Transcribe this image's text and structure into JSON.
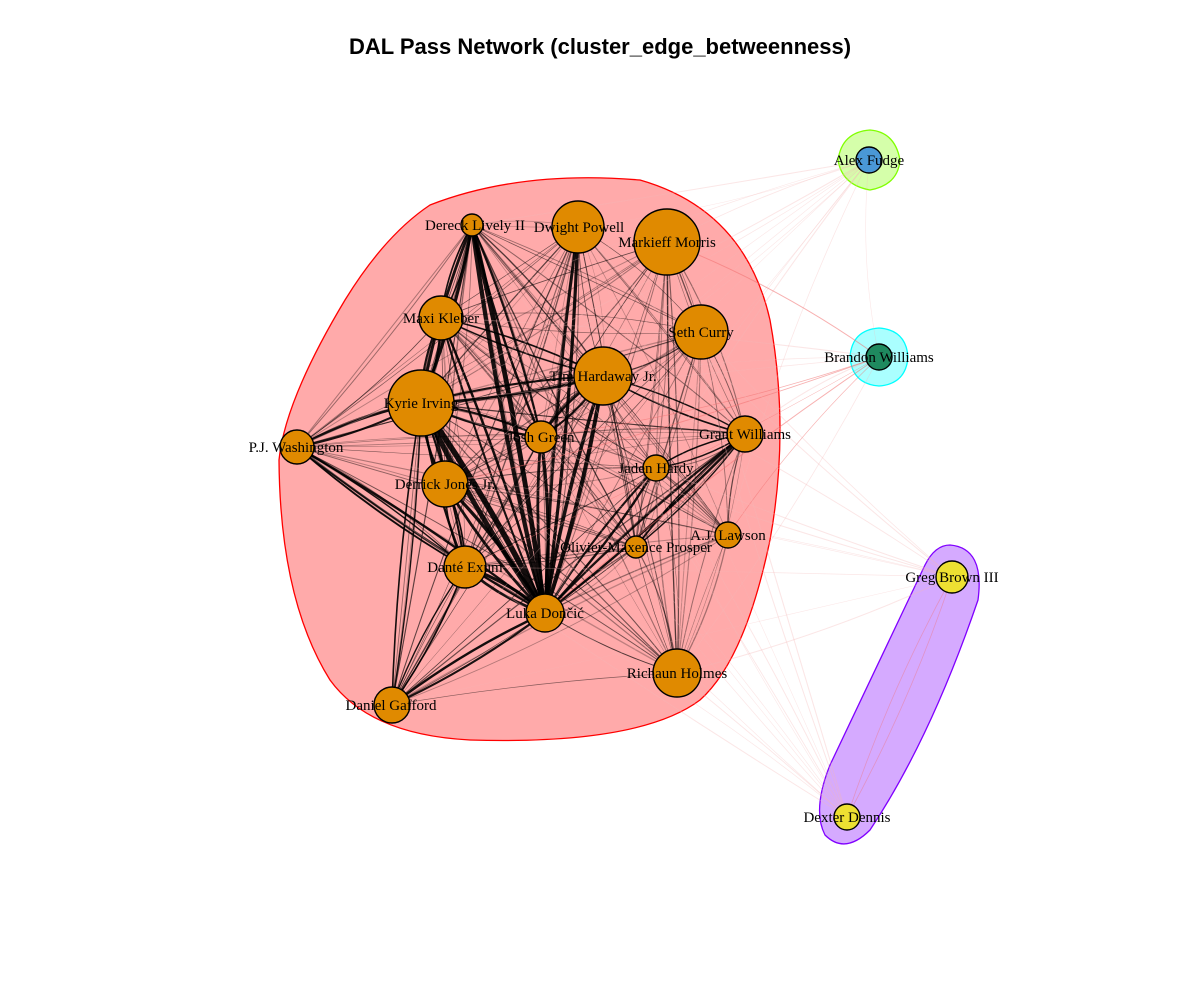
{
  "title": "DAL Pass Network (cluster_edge_betweenness)",
  "colors": {
    "cluster1_fill": "#ff000055",
    "cluster1_stroke": "#ff0000",
    "cluster2_fill": "#80ff0055",
    "cluster2_stroke": "#80ff00",
    "cluster3_fill": "#00ffff55",
    "cluster3_stroke": "#00ffff",
    "cluster4_fill": "#8000ff55",
    "cluster4_stroke": "#8000ff",
    "node_orange": "#e08a00",
    "node_blue": "#4a98d6",
    "node_green": "#1f8a5f",
    "node_yellow": "#ede032",
    "edge_internal": "#000000",
    "edge_external": "#f07070"
  },
  "clusters": [
    {
      "id": 1,
      "color": "cluster1",
      "members": [
        "Dereck Lively II",
        "Dwight Powell",
        "Markieff Morris",
        "Maxi Kleber",
        "Seth Curry",
        "Tim Hardaway Jr.",
        "Kyrie Irving",
        "P.J. Washington",
        "Josh Green",
        "Grant Williams",
        "Jaden Hardy",
        "Derrick Jones Jr.",
        "A.J. Lawson",
        "Olivier-Maxence Prosper",
        "Dante Exum",
        "Luka Doncic",
        "Richaun Holmes",
        "Daniel Gafford"
      ]
    },
    {
      "id": 2,
      "color": "cluster2",
      "members": [
        "Alex Fudge"
      ]
    },
    {
      "id": 3,
      "color": "cluster3",
      "members": [
        "Brandon Williams"
      ]
    },
    {
      "id": 4,
      "color": "cluster4",
      "members": [
        "Greg Brown III",
        "Dexter Dennis"
      ]
    }
  ],
  "nodes": [
    {
      "id": "lively",
      "label": "Dereck Lively II",
      "cluster": 1,
      "color": "orange",
      "size": 11
    },
    {
      "id": "powell",
      "label": "Dwight Powell",
      "cluster": 1,
      "color": "orange",
      "size": 26
    },
    {
      "id": "morris",
      "label": "Markieff Morris",
      "cluster": 1,
      "color": "orange",
      "size": 33
    },
    {
      "id": "kleber",
      "label": "Maxi Kleber",
      "cluster": 1,
      "color": "orange",
      "size": 22
    },
    {
      "id": "curry",
      "label": "Seth Curry",
      "cluster": 1,
      "color": "orange",
      "size": 27
    },
    {
      "id": "hardaway",
      "label": "Tim Hardaway Jr.",
      "cluster": 1,
      "color": "orange",
      "size": 29
    },
    {
      "id": "irving",
      "label": "Kyrie Irving",
      "cluster": 1,
      "color": "orange",
      "size": 33
    },
    {
      "id": "washington",
      "label": "P.J. Washington",
      "cluster": 1,
      "color": "orange",
      "size": 17
    },
    {
      "id": "green",
      "label": "Josh Green",
      "cluster": 1,
      "color": "orange",
      "size": 16
    },
    {
      "id": "gwilliams",
      "label": "Grant Williams",
      "cluster": 1,
      "color": "orange",
      "size": 18
    },
    {
      "id": "hardy",
      "label": "Jaden Hardy",
      "cluster": 1,
      "color": "orange",
      "size": 13
    },
    {
      "id": "jones",
      "label": "Derrick Jones Jr.",
      "cluster": 1,
      "color": "orange",
      "size": 23
    },
    {
      "id": "lawson",
      "label": "A.J. Lawson",
      "cluster": 1,
      "color": "orange",
      "size": 13
    },
    {
      "id": "prosper",
      "label": "Olivier-Maxence Prosper",
      "cluster": 1,
      "color": "orange",
      "size": 11
    },
    {
      "id": "exum",
      "label": "Danté Exum",
      "cluster": 1,
      "color": "orange",
      "size": 21
    },
    {
      "id": "doncic",
      "label": "Luka Dončić",
      "cluster": 1,
      "color": "orange",
      "size": 19
    },
    {
      "id": "holmes",
      "label": "Richaun Holmes",
      "cluster": 1,
      "color": "orange",
      "size": 24
    },
    {
      "id": "gafford",
      "label": "Daniel Gafford",
      "cluster": 1,
      "color": "orange",
      "size": 18
    },
    {
      "id": "fudge",
      "label": "Alex Fudge",
      "cluster": 2,
      "color": "blue",
      "size": 13
    },
    {
      "id": "bwilliams",
      "label": "Brandon Williams",
      "cluster": 3,
      "color": "green",
      "size": 13
    },
    {
      "id": "brown",
      "label": "Greg Brown III",
      "cluster": 4,
      "color": "yellow",
      "size": 16
    },
    {
      "id": "dennis",
      "label": "Dexter Dennis",
      "cluster": 4,
      "color": "yellow",
      "size": 13
    }
  ],
  "heavy_edges": [
    [
      "doncic",
      "irving",
      7
    ],
    [
      "doncic",
      "lively",
      6
    ],
    [
      "doncic",
      "powell",
      4
    ],
    [
      "doncic",
      "hardaway",
      5
    ],
    [
      "doncic",
      "green",
      4
    ],
    [
      "doncic",
      "jones",
      4
    ],
    [
      "doncic",
      "exum",
      4
    ],
    [
      "doncic",
      "kleber",
      3
    ],
    [
      "doncic",
      "gwilliams",
      3
    ],
    [
      "doncic",
      "washington",
      3
    ],
    [
      "doncic",
      "gafford",
      3
    ],
    [
      "doncic",
      "hardy",
      3
    ],
    [
      "irving",
      "lively",
      4
    ],
    [
      "irving",
      "kleber",
      3
    ],
    [
      "irving",
      "hardaway",
      3
    ],
    [
      "irving",
      "green",
      3
    ],
    [
      "irving",
      "jones",
      3
    ],
    [
      "irving",
      "exum",
      3
    ],
    [
      "irving",
      "washington",
      3
    ],
    [
      "irving",
      "gafford",
      2
    ],
    [
      "hardaway",
      "green",
      3
    ],
    [
      "hardaway",
      "kleber",
      2
    ],
    [
      "hardaway",
      "gwilliams",
      2
    ],
    [
      "lively",
      "green",
      3
    ],
    [
      "lively",
      "kleber",
      2
    ],
    [
      "exum",
      "jones",
      2
    ],
    [
      "washington",
      "exum",
      2
    ],
    [
      "gwilliams",
      "hardy",
      2
    ],
    [
      "gwilliams",
      "prosper",
      2
    ],
    [
      "gafford",
      "exum",
      2
    ]
  ]
}
